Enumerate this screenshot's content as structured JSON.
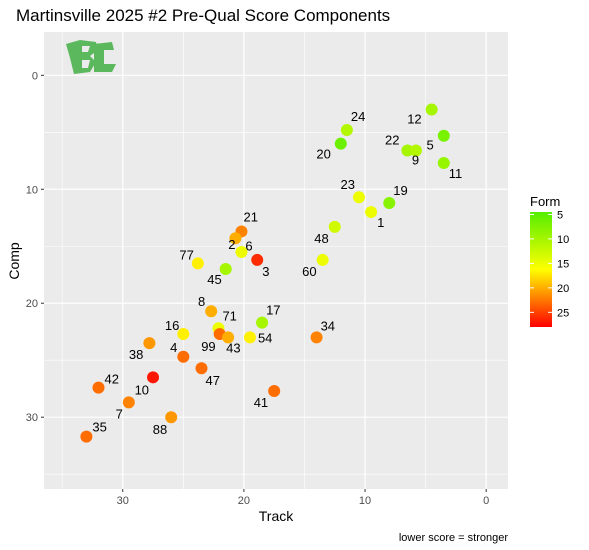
{
  "chart_data": {
    "type": "scatter",
    "title": "Martinsville 2025 #2 Pre-Qual Score Components",
    "xlabel": "Track",
    "ylabel": "Comp",
    "caption": "lower score = stronger",
    "x_reversed": true,
    "y_reversed": true,
    "xlim": [
      36.5,
      -1.8
    ],
    "ylim": [
      -3.8,
      36.3
    ],
    "x_ticks": [
      30,
      20,
      10,
      0
    ],
    "y_ticks": [
      0,
      10,
      20,
      30
    ],
    "grid": true,
    "legend": {
      "title": "Form",
      "position": "right",
      "ticks": [
        5,
        10,
        15,
        20,
        25
      ],
      "range": [
        4.5,
        28
      ]
    },
    "colors": {
      "low": "#55ee00",
      "mid": "#ffff00",
      "high": "#ff0000",
      "panel": "#ebebeb",
      "grid": "#ffffff",
      "logo": "#5cb85c"
    },
    "points": [
      {
        "label": "12",
        "x": 4.5,
        "y": 3.0,
        "form": 10
      },
      {
        "label": "24",
        "x": 11.5,
        "y": 4.8,
        "form": 11
      },
      {
        "label": "5",
        "x": 3.5,
        "y": 5.3,
        "form": 7
      },
      {
        "label": "20",
        "x": 12.0,
        "y": 6.0,
        "form": 6
      },
      {
        "label": "22",
        "x": 6.5,
        "y": 6.6,
        "form": 10
      },
      {
        "label": "9",
        "x": 5.8,
        "y": 6.6,
        "form": 11
      },
      {
        "label": "11",
        "x": 3.5,
        "y": 7.7,
        "form": 9
      },
      {
        "label": "23",
        "x": 10.5,
        "y": 10.7,
        "form": 15
      },
      {
        "label": "19",
        "x": 8.0,
        "y": 11.2,
        "form": 8
      },
      {
        "label": "1",
        "x": 9.5,
        "y": 12.0,
        "form": 15
      },
      {
        "label": "48",
        "x": 12.5,
        "y": 13.3,
        "form": 13
      },
      {
        "label": "21",
        "x": 20.2,
        "y": 13.7,
        "form": 22
      },
      {
        "label": "6",
        "x": 20.7,
        "y": 14.3,
        "form": 20
      },
      {
        "label": "2",
        "x": 20.2,
        "y": 15.5,
        "form": 15
      },
      {
        "label": "3",
        "x": 18.9,
        "y": 16.2,
        "form": 26
      },
      {
        "label": "60",
        "x": 13.5,
        "y": 16.2,
        "form": 15
      },
      {
        "label": "77",
        "x": 23.8,
        "y": 16.5,
        "form": 17
      },
      {
        "label": "45",
        "x": 21.5,
        "y": 17.0,
        "form": 10
      },
      {
        "label": "8",
        "x": 22.7,
        "y": 20.7,
        "form": 20
      },
      {
        "label": "17",
        "x": 18.5,
        "y": 21.7,
        "form": 10
      },
      {
        "label": "71",
        "x": 22.1,
        "y": 22.2,
        "form": 15
      },
      {
        "label": "99",
        "x": 22.0,
        "y": 22.7,
        "form": 23
      },
      {
        "label": "16",
        "x": 25.0,
        "y": 22.7,
        "form": 17
      },
      {
        "label": "43",
        "x": 21.3,
        "y": 23.0,
        "form": 20
      },
      {
        "label": "54",
        "x": 19.5,
        "y": 23.0,
        "form": 17
      },
      {
        "label": "34",
        "x": 14.0,
        "y": 23.0,
        "form": 22
      },
      {
        "label": "38",
        "x": 27.8,
        "y": 23.5,
        "form": 21
      },
      {
        "label": "4",
        "x": 25.0,
        "y": 24.7,
        "form": 23
      },
      {
        "label": "47",
        "x": 23.5,
        "y": 25.7,
        "form": 23
      },
      {
        "label": "10",
        "x": 27.5,
        "y": 26.5,
        "form": 27
      },
      {
        "label": "42",
        "x": 32.0,
        "y": 27.4,
        "form": 23
      },
      {
        "label": "41",
        "x": 17.5,
        "y": 27.7,
        "form": 23
      },
      {
        "label": "7",
        "x": 29.5,
        "y": 28.7,
        "form": 22
      },
      {
        "label": "88",
        "x": 26.0,
        "y": 30.0,
        "form": 21
      },
      {
        "label": "35",
        "x": 33.0,
        "y": 31.7,
        "form": 23
      }
    ]
  }
}
